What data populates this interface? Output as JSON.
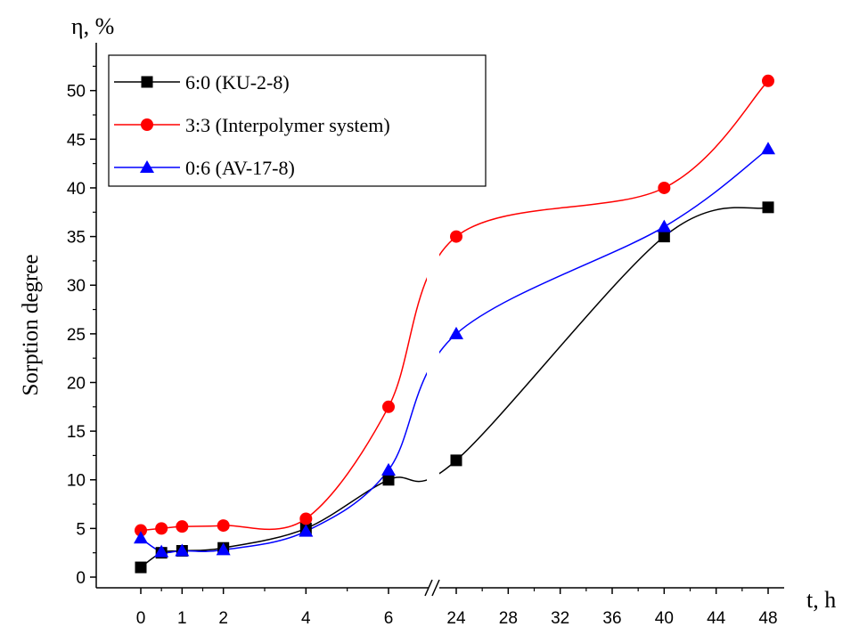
{
  "chart_data": {
    "type": "line",
    "ylabel": "Sorption degree",
    "y_unit_label": "η, %",
    "x_unit_label": "t, h",
    "ylim": [
      0,
      54
    ],
    "yticks": [
      0,
      5,
      10,
      15,
      20,
      25,
      30,
      35,
      40,
      45,
      50
    ],
    "x_axis_break": "between 6 and 24",
    "x_segments": [
      {
        "range": [
          0,
          6
        ],
        "ticks": [
          0,
          1,
          2,
          4,
          6
        ]
      },
      {
        "range": [
          24,
          48
        ],
        "ticks": [
          24,
          28,
          32,
          36,
          40,
          44,
          48
        ]
      }
    ],
    "grid": false,
    "legend_position": "top-left",
    "series": [
      {
        "name": "6:0 (KU-2-8)",
        "color": "#000000",
        "marker": "square",
        "points": [
          [
            0,
            1.0
          ],
          [
            0.5,
            2.5
          ],
          [
            1,
            2.7
          ],
          [
            2,
            3.0
          ],
          [
            4,
            5.0
          ],
          [
            6,
            10.0
          ],
          [
            24,
            12.0
          ],
          [
            40,
            35.0
          ],
          [
            48,
            38.0
          ]
        ]
      },
      {
        "name": "3:3 (Interpolymer system)",
        "color": "#ff0000",
        "marker": "circle",
        "points": [
          [
            0,
            4.8
          ],
          [
            0.5,
            5.0
          ],
          [
            1,
            5.2
          ],
          [
            2,
            5.3
          ],
          [
            4,
            6.0
          ],
          [
            6,
            17.5
          ],
          [
            24,
            35.0
          ],
          [
            40,
            40.0
          ],
          [
            48,
            51.0
          ]
        ]
      },
      {
        "name": "0:6 (AV-17-8)",
        "color": "#0000ff",
        "marker": "triangle",
        "points": [
          [
            0,
            4.0
          ],
          [
            0.5,
            2.6
          ],
          [
            1,
            2.7
          ],
          [
            2,
            2.8
          ],
          [
            4,
            4.7
          ],
          [
            6,
            11.0
          ],
          [
            24,
            25.0
          ],
          [
            40,
            36.0
          ],
          [
            48,
            44.0
          ]
        ]
      }
    ]
  }
}
